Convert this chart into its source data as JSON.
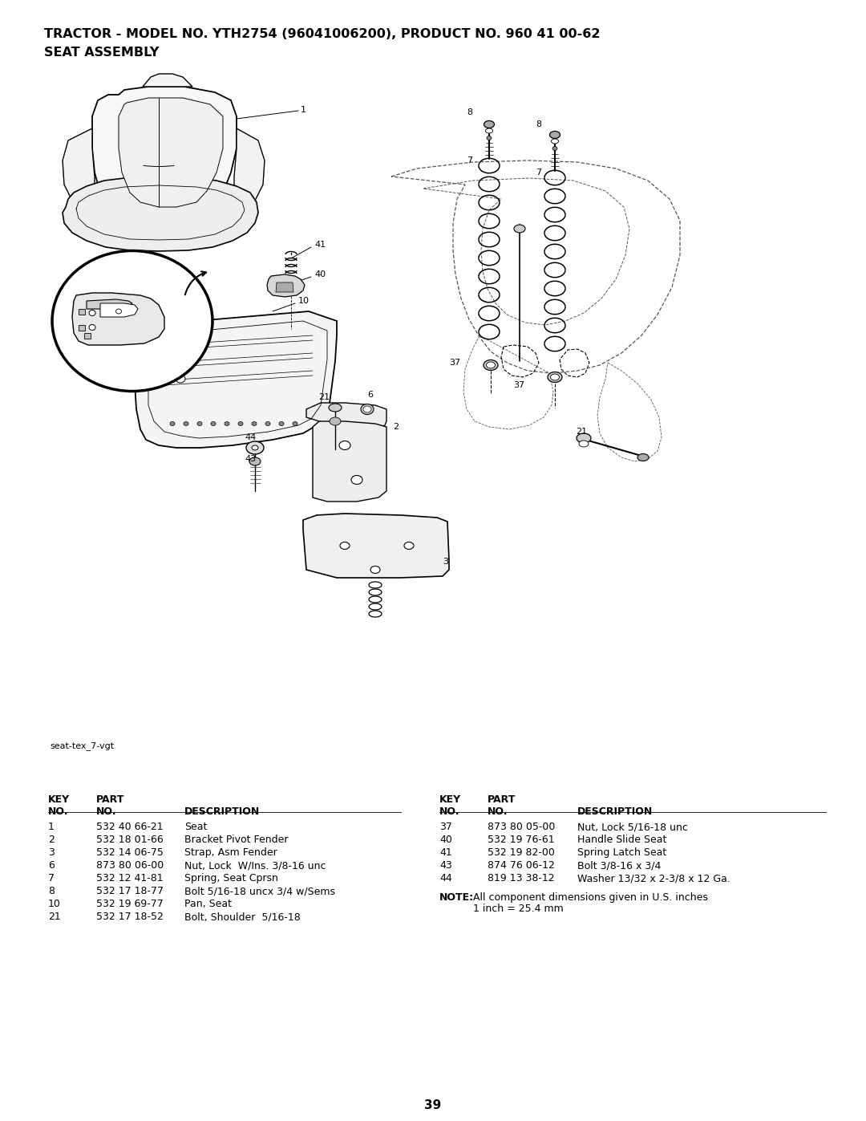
{
  "title_line1": "TRACTOR - MODEL NO. YTH2754 (96041006200), PRODUCT NO. 960 41 00-62",
  "title_line2": "SEAT ASSEMBLY",
  "diagram_label": "seat-tex_7-vgt",
  "page_number": "39",
  "bg_color": "#ffffff",
  "left_table_rows": [
    [
      "1",
      "532 40 66-21",
      "Seat"
    ],
    [
      "2",
      "532 18 01-66",
      "Bracket Pivot Fender"
    ],
    [
      "3",
      "532 14 06-75",
      "Strap, Asm Fender"
    ],
    [
      "6",
      "873 80 06-00",
      "Nut, Lock  W/Ins. 3/8-16 unc"
    ],
    [
      "7",
      "532 12 41-81",
      "Spring, Seat Cprsn"
    ],
    [
      "8",
      "532 17 18-77",
      "Bolt 5/16-18 uncx 3/4 w/Sems"
    ],
    [
      "10",
      "532 19 69-77",
      "Pan, Seat"
    ],
    [
      "21",
      "532 17 18-52",
      "Bolt, Shoulder  5/16-18"
    ]
  ],
  "right_table_rows": [
    [
      "37",
      "873 80 05-00",
      "Nut, Lock 5/16-18 unc"
    ],
    [
      "40",
      "532 19 76-61",
      "Handle Slide Seat"
    ],
    [
      "41",
      "532 19 82-00",
      "Spring Latch Seat"
    ],
    [
      "43",
      "874 76 06-12",
      "Bolt 3/8-16 x 3/4"
    ],
    [
      "44",
      "819 13 38-12",
      "Washer 13/32 x 2-3/8 x 12 Ga."
    ]
  ]
}
